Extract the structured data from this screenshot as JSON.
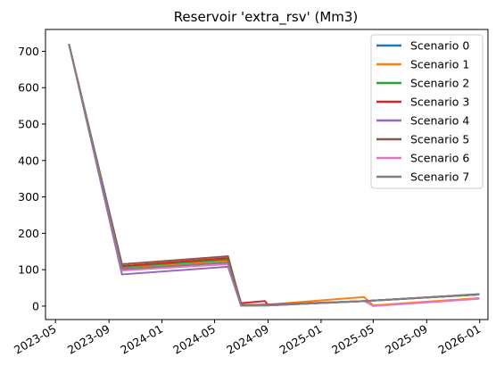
{
  "chart_data": {
    "type": "line",
    "title": "Reservoir 'extra_rsv' (Mm3)",
    "xlabel": "",
    "ylabel": "",
    "x_ticks": [
      "2023-05",
      "2023-09",
      "2024-01",
      "2024-05",
      "2024-09",
      "2025-01",
      "2025-05",
      "2025-09",
      "2026-01"
    ],
    "y_ticks": [
      0,
      100,
      200,
      300,
      400,
      500,
      600,
      700
    ],
    "xlim": [
      "2023-04-08",
      "2026-01-20"
    ],
    "ylim": [
      -37,
      760
    ],
    "grid": false,
    "legend_position": "top-right",
    "series": [
      {
        "name": "Scenario 0",
        "color": "#1f77b4",
        "points": [
          [
            "2023-06-01",
            720
          ],
          [
            "2023-10-01",
            100
          ],
          [
            "2024-06-01",
            118
          ],
          [
            "2024-07-01",
            2
          ],
          [
            "2024-09-01",
            3
          ],
          [
            "2025-04-15",
            14
          ],
          [
            "2025-05-01",
            15
          ],
          [
            "2025-12-31",
            32
          ]
        ]
      },
      {
        "name": "Scenario 1",
        "color": "#ff7f0e",
        "points": [
          [
            "2023-06-01",
            720
          ],
          [
            "2023-10-01",
            105
          ],
          [
            "2024-06-01",
            125
          ],
          [
            "2024-07-01",
            3
          ],
          [
            "2024-09-01",
            4
          ],
          [
            "2025-04-10",
            25
          ],
          [
            "2025-05-01",
            2
          ],
          [
            "2025-12-31",
            22
          ]
        ]
      },
      {
        "name": "Scenario 2",
        "color": "#2ca02c",
        "points": [
          [
            "2023-06-01",
            720
          ],
          [
            "2023-10-01",
            108
          ],
          [
            "2024-06-01",
            128
          ],
          [
            "2024-07-01",
            2
          ],
          [
            "2024-09-01",
            3
          ],
          [
            "2025-04-15",
            14
          ],
          [
            "2025-05-01",
            15
          ],
          [
            "2025-12-31",
            32
          ]
        ]
      },
      {
        "name": "Scenario 3",
        "color": "#d62728",
        "points": [
          [
            "2023-06-01",
            720
          ],
          [
            "2023-10-01",
            110
          ],
          [
            "2024-06-01",
            132
          ],
          [
            "2024-07-01",
            8
          ],
          [
            "2024-08-25",
            14
          ],
          [
            "2024-09-01",
            2
          ],
          [
            "2025-04-15",
            14
          ],
          [
            "2025-05-01",
            15
          ],
          [
            "2025-12-31",
            32
          ]
        ]
      },
      {
        "name": "Scenario 4",
        "color": "#9467bd",
        "points": [
          [
            "2023-06-01",
            720
          ],
          [
            "2023-10-01",
            87
          ],
          [
            "2024-06-01",
            108
          ],
          [
            "2024-07-01",
            1
          ],
          [
            "2024-09-01",
            2
          ],
          [
            "2025-04-15",
            14
          ],
          [
            "2025-05-01",
            15
          ],
          [
            "2025-12-31",
            32
          ]
        ]
      },
      {
        "name": "Scenario 5",
        "color": "#8c564b",
        "points": [
          [
            "2023-06-01",
            720
          ],
          [
            "2023-10-01",
            115
          ],
          [
            "2024-06-01",
            137
          ],
          [
            "2024-07-01",
            3
          ],
          [
            "2024-09-01",
            4
          ],
          [
            "2025-04-15",
            14
          ],
          [
            "2025-05-01",
            15
          ],
          [
            "2025-12-31",
            33
          ]
        ]
      },
      {
        "name": "Scenario 6",
        "color": "#e377c2",
        "points": [
          [
            "2023-06-01",
            720
          ],
          [
            "2023-10-01",
            98
          ],
          [
            "2024-06-01",
            115
          ],
          [
            "2024-07-01",
            1
          ],
          [
            "2024-09-01",
            2
          ],
          [
            "2025-04-10",
            14
          ],
          [
            "2025-05-01",
            0
          ],
          [
            "2025-12-31",
            20
          ]
        ]
      },
      {
        "name": "Scenario 7",
        "color": "#7f7f7f",
        "points": [
          [
            "2023-06-01",
            720
          ],
          [
            "2023-10-01",
            102
          ],
          [
            "2024-06-01",
            120
          ],
          [
            "2024-07-01",
            1
          ],
          [
            "2024-09-01",
            2
          ],
          [
            "2025-04-15",
            14
          ],
          [
            "2025-05-01",
            15
          ],
          [
            "2025-12-31",
            32
          ]
        ]
      }
    ]
  }
}
